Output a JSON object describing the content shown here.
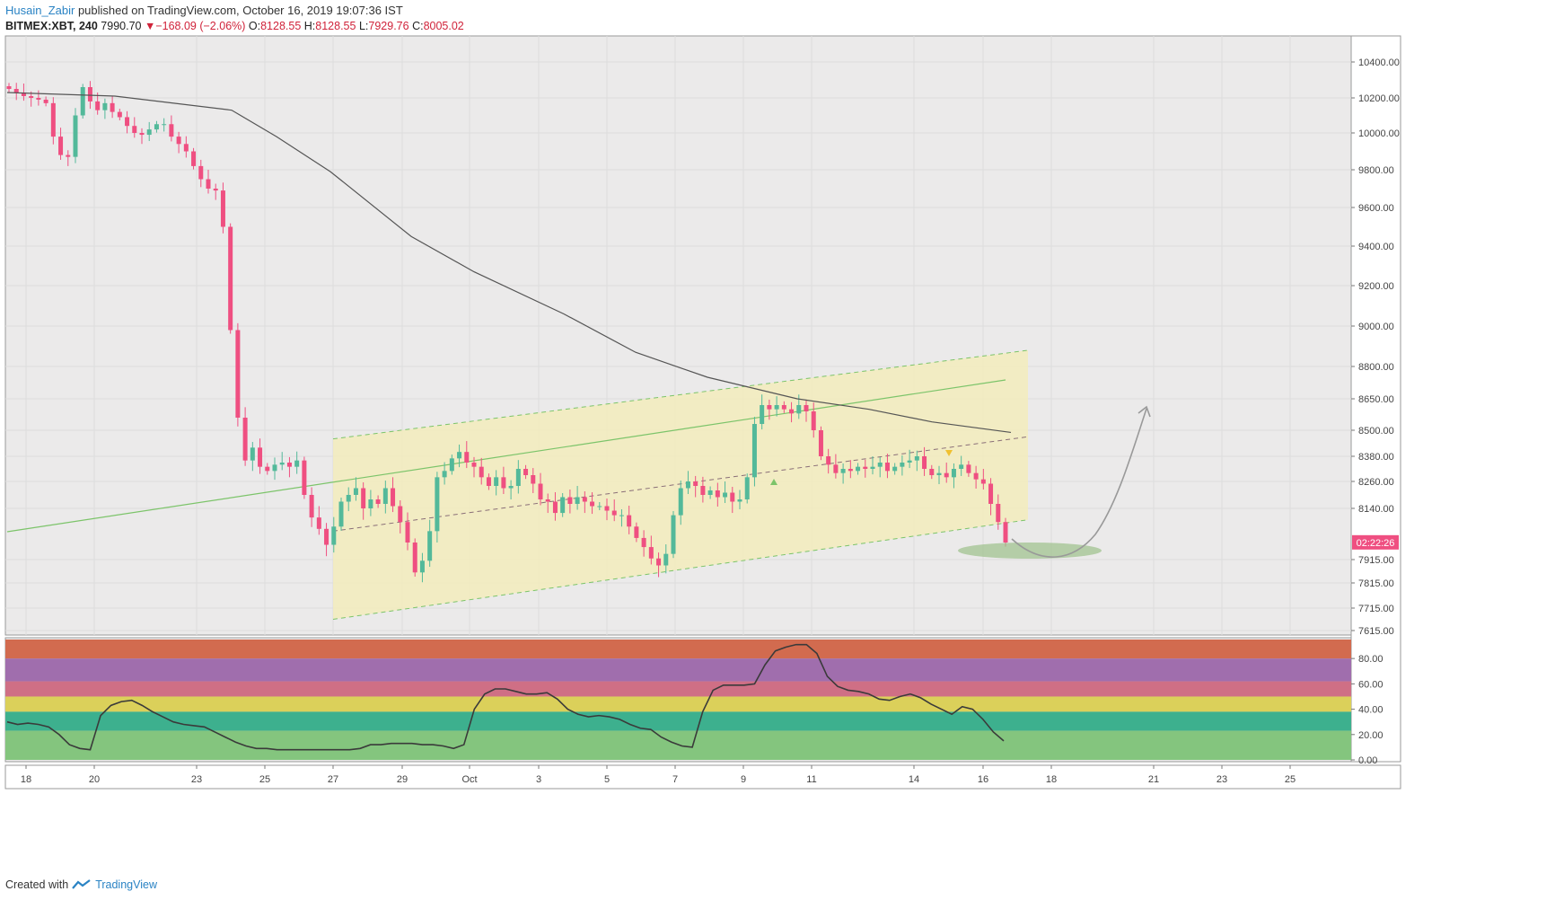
{
  "header": {
    "author": "Husain_Zabir",
    "published": "published on TradingView.com, October 16, 2019 19:07:36 IST",
    "symbol": "BITMEX:XBT, 240",
    "last": "7990.70",
    "change": "−168.09 (−2.06%)",
    "o_label": "O:",
    "o_value": "8128.55",
    "h_label": "H:",
    "h_value": "8128.55",
    "l_label": "L:",
    "l_value": "7929.76",
    "c_label": "C:",
    "c_value": "8005.02"
  },
  "footer": {
    "created_with": "Created with",
    "brand": "TradingView"
  },
  "countdown": "02:22:26",
  "colors": {
    "up": "#53b99a",
    "down": "#ef4f81",
    "sma": "#555555",
    "trend": "#7cc46a",
    "channel": "#f3ecbc",
    "indicator_line": "#3a3a3a"
  },
  "chart_data": {
    "type": "candlestick",
    "title": "BITMEX:XBT, 240",
    "ylim": [
      7615,
      10500
    ],
    "price_ticks": [
      "10400.00",
      "10200.00",
      "10000.00",
      "9800.00",
      "9600.00",
      "9400.00",
      "9200.00",
      "9000.00",
      "8800.00",
      "8650.00",
      "8500.00",
      "8380.00",
      "8260.00",
      "8140.00",
      "7915.00",
      "7815.00",
      "7715.00",
      "7615.00"
    ],
    "x_ticks": [
      "18",
      "20",
      "23",
      "25",
      "27",
      "29",
      "Oct",
      "3",
      "5",
      "7",
      "9",
      "11",
      "14",
      "16",
      "18",
      "21",
      "23",
      "25"
    ],
    "candles_close_path": [
      10250,
      10230,
      10210,
      10200,
      10190,
      10170,
      9980,
      9880,
      9870,
      10100,
      10260,
      10180,
      10130,
      10170,
      10120,
      10090,
      10040,
      10000,
      9990,
      10020,
      10050,
      10050,
      9980,
      9940,
      9900,
      9820,
      9750,
      9700,
      9690,
      9500,
      8980,
      8560,
      8360,
      8420,
      8330,
      8310,
      8340,
      8350,
      8330,
      8360,
      8200,
      8100,
      8050,
      7980,
      8060,
      8170,
      8200,
      8230,
      8140,
      8180,
      8160,
      8230,
      8150,
      8080,
      7990,
      7860,
      7910,
      8040,
      8280,
      8310,
      8370,
      8400,
      8350,
      8330,
      8280,
      8240,
      8280,
      8230,
      8240,
      8320,
      8290,
      8250,
      8180,
      8170,
      8120,
      8190,
      8160,
      8190,
      8170,
      8150,
      8150,
      8130,
      8110,
      8110,
      8060,
      8010,
      7970,
      7920,
      7890,
      7940,
      8110,
      8230,
      8260,
      8240,
      8200,
      8220,
      8190,
      8210,
      8170,
      8180,
      8280,
      8530,
      8620,
      8600,
      8620,
      8600,
      8580,
      8620,
      8590,
      8500,
      8380,
      8340,
      8300,
      8320,
      8310,
      8330,
      8320,
      8330,
      8350,
      8310,
      8330,
      8350,
      8360,
      8380,
      8320,
      8290,
      8300,
      8280,
      8320,
      8340,
      8300,
      8270,
      8250,
      8160,
      8080,
      7990
    ],
    "sma200": [
      [
        0,
        10230
      ],
      [
        120,
        10210
      ],
      [
        250,
        10130
      ],
      [
        300,
        9980
      ],
      [
        360,
        9790
      ],
      [
        450,
        9450
      ],
      [
        520,
        9270
      ],
      [
        620,
        9060
      ],
      [
        700,
        8870
      ],
      [
        780,
        8750
      ],
      [
        880,
        8650
      ],
      [
        960,
        8600
      ],
      [
        1030,
        8540
      ],
      [
        1118,
        8490
      ]
    ],
    "channel_price": {
      "top_left": 8460,
      "top_right": 8880,
      "mid_left": 8040,
      "mid_right": 8470,
      "bottom_left": 7665,
      "bottom_right": 8090
    },
    "indicator": {
      "name": "RSI",
      "ylim": [
        0,
        95
      ],
      "ticks": [
        "80.00",
        "60.00",
        "40.00",
        "20.00",
        "0.00"
      ],
      "bands": [
        {
          "from": 80,
          "to": 95,
          "color": "#d26b4f"
        },
        {
          "from": 62,
          "to": 80,
          "color": "#a06ead"
        },
        {
          "from": 50,
          "to": 62,
          "color": "#cf6f85"
        },
        {
          "from": 38,
          "to": 50,
          "color": "#dbd05a"
        },
        {
          "from": 23,
          "to": 38,
          "color": "#3db08e"
        },
        {
          "from": 0,
          "to": 23,
          "color": "#84c57e"
        }
      ],
      "values": [
        30,
        28,
        29,
        28,
        26,
        20,
        12,
        9,
        8,
        35,
        43,
        46,
        47,
        43,
        38,
        34,
        30,
        28,
        27,
        26,
        22,
        18,
        14,
        11,
        9,
        9,
        8,
        8,
        8,
        8,
        8,
        8,
        8,
        8,
        9,
        12,
        12,
        13,
        13,
        13,
        12,
        12,
        11,
        9,
        12,
        40,
        52,
        56,
        56,
        54,
        52,
        52,
        53,
        48,
        40,
        36,
        34,
        35,
        34,
        32,
        28,
        25,
        24,
        18,
        14,
        11,
        10,
        38,
        55,
        59,
        59,
        59,
        60,
        75,
        86,
        89,
        91,
        91,
        84,
        66,
        58,
        55,
        54,
        52,
        48,
        47,
        50,
        52,
        49,
        44,
        40,
        36,
        42,
        40,
        32,
        22,
        15
      ]
    }
  }
}
